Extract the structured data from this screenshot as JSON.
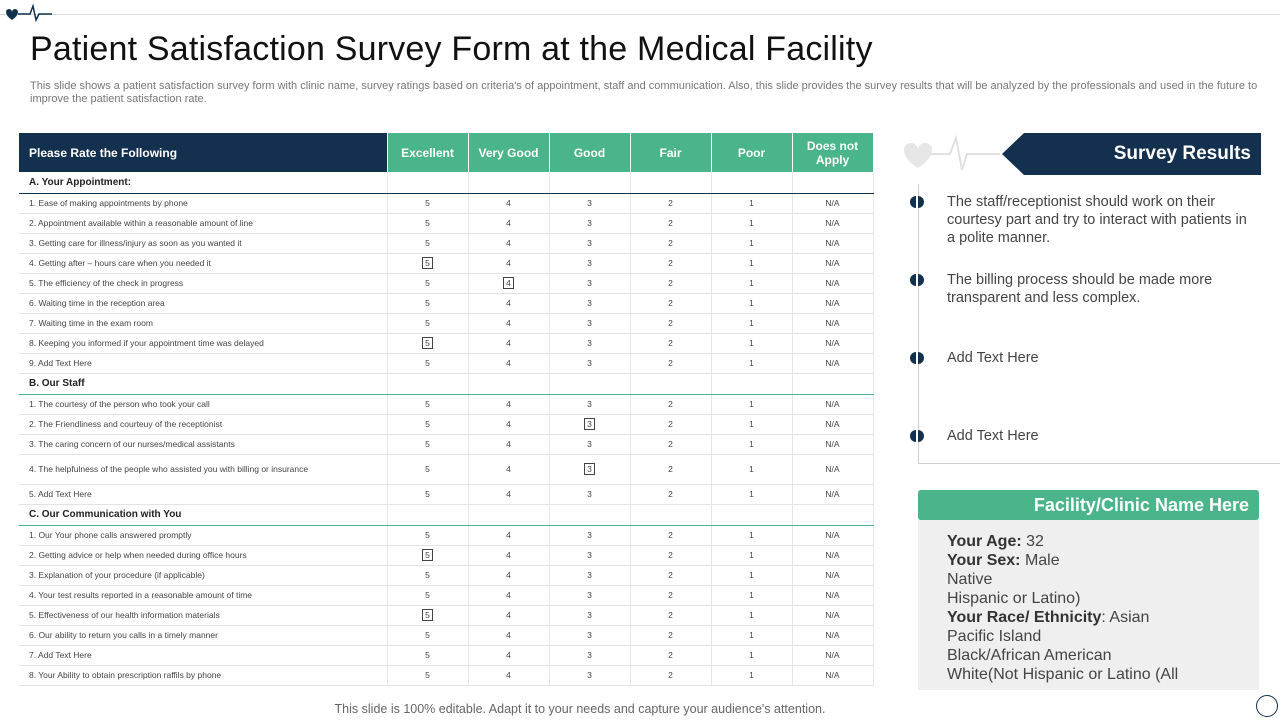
{
  "title": "Patient Satisfaction Survey Form at the Medical Facility",
  "subtitle": "This slide shows a patient satisfaction survey form with clinic name, survey ratings based on criteria's of appointment, staff and communication. Also, this slide provides the survey results that will be analyzed by the professionals and used in the future to improve the patient satisfaction rate.",
  "table": {
    "question_header": "Please Rate the Following",
    "rating_headers": [
      "Excellent",
      "Very Good",
      "Good",
      "Fair",
      "Poor",
      "Does not Apply"
    ],
    "ratings": [
      "5",
      "4",
      "3",
      "2",
      "1",
      "N/A"
    ],
    "sections": [
      {
        "title": "A. Your Appointment:",
        "rows": [
          {
            "q": "1. Ease of making appointments by phone",
            "mark": -1
          },
          {
            "q": "2. Appointment available within a reasonable amount of line",
            "mark": -1
          },
          {
            "q": "3. Getting care for illness/injury as soon as you wanted it",
            "mark": -1
          },
          {
            "q": "4. Getting after – hours care when you needed it",
            "mark": 0
          },
          {
            "q": "5. The efficiency of the check in progress",
            "mark": 1
          },
          {
            "q": "6. Waiting time in the reception area",
            "mark": -1
          },
          {
            "q": "7. Waiting time in the exam room",
            "mark": -1
          },
          {
            "q": "8. Keeping you informed if your appointment time was delayed",
            "mark": 0
          },
          {
            "q": "9. Add Text Here",
            "mark": -1
          }
        ]
      },
      {
        "title": "B. Our Staff",
        "rows": [
          {
            "q": "1. The courtesy of the person who took your call",
            "mark": -1
          },
          {
            "q": "2. The Friendliness and courteuy of the receptionist",
            "mark": 2
          },
          {
            "q": "3. The caring concern of our nurses/medical assistants",
            "mark": -1
          },
          {
            "q": "4. The helpfulness of the people who assisted you with billing or insurance",
            "mark": 2,
            "tall": true
          },
          {
            "q": "5. Add Text Here",
            "mark": -1
          }
        ]
      },
      {
        "title": "C. Our Communication with You",
        "rows": [
          {
            "q": "1. Our Your phone calls answered promptly",
            "mark": -1
          },
          {
            "q": "2. Getting advice or help when needed during office hours",
            "mark": 0
          },
          {
            "q": "3. Explanation of your procedure (if applicable)",
            "mark": -1
          },
          {
            "q": "4. Your test results reported in a reasonable amount of time",
            "mark": -1
          },
          {
            "q": "5. Effectiveness of our health information materials",
            "mark": 0
          },
          {
            "q": "6. Our ability to return you calls in a timely manner",
            "mark": -1
          },
          {
            "q": "7. Add Text Here",
            "mark": -1
          },
          {
            "q": "8. Your Ability to obtain prescription raffils by phone",
            "mark": -1
          }
        ]
      }
    ]
  },
  "survey_results": {
    "title": "Survey Results",
    "points": [
      "The staff/receptionist should work on their courtesy part and try to interact with patients in a polite manner.",
      "The billing process should be made more transparent and less complex.",
      "Add Text Here",
      "Add Text Here"
    ]
  },
  "facility": {
    "title": "Facility/Clinic Name Here",
    "age_label": "Your Age:",
    "age_value": " 32",
    "sex_label": "Your Sex:",
    "sex_value": " Male",
    "line_native": "Native",
    "line_hispanic": "Hispanic or Latino)",
    "race_label": "Your Race/ Ethnicity",
    "race_value": ": Asian",
    "line_pacific": "Pacific Island",
    "line_black": "Black/African American",
    "line_white": "White(Not Hispanic or Latino (All"
  },
  "footer": "This slide is 100% editable. Adapt it to your needs and capture your audience's attention.",
  "colors": {
    "navy": "#13304f",
    "green": "#4ab58a"
  }
}
